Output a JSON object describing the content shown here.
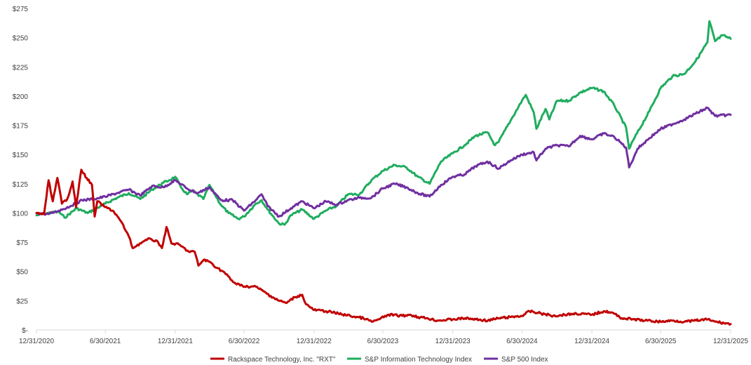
{
  "chart_data": {
    "type": "line",
    "title": "",
    "xlabel": "",
    "ylabel": "",
    "ylim": [
      0,
      275
    ],
    "xlim": [
      "12/31/2020",
      "12/31/2025"
    ],
    "grid": false,
    "legend_position": "bottom",
    "x_ticks": [
      "12/31/2020",
      "6/30/2021",
      "12/31/2021",
      "6/30/2022",
      "12/31/2022",
      "6/30/2023",
      "12/31/2023",
      "6/30/2024",
      "12/31/2024",
      "6/30/2025",
      "12/31/2025"
    ],
    "y_ticks": [
      {
        "value": 0,
        "label": "$-"
      },
      {
        "value": 25,
        "label": "$25"
      },
      {
        "value": 50,
        "label": "$50"
      },
      {
        "value": 75,
        "label": "$75"
      },
      {
        "value": 100,
        "label": "$100"
      },
      {
        "value": 125,
        "label": "$125"
      },
      {
        "value": 150,
        "label": "$150"
      },
      {
        "value": 175,
        "label": "$175"
      },
      {
        "value": 200,
        "label": "$200"
      },
      {
        "value": 225,
        "label": "$225"
      },
      {
        "value": 250,
        "label": "$250"
      },
      {
        "value": 275,
        "label": "$275"
      }
    ],
    "series": [
      {
        "name": "Rackspace Technology, Inc. \"RXT\"",
        "color": "#c00000",
        "points": [
          [
            "12/31/2020",
            100
          ],
          [
            "1/20/2021",
            99
          ],
          [
            "2/1/2021",
            128
          ],
          [
            "2/12/2021",
            110
          ],
          [
            "2/24/2021",
            130
          ],
          [
            "3/8/2021",
            108
          ],
          [
            "3/22/2021",
            112
          ],
          [
            "4/5/2021",
            127
          ],
          [
            "4/14/2021",
            105
          ],
          [
            "4/28/2021",
            137
          ],
          [
            "5/12/2021",
            130
          ],
          [
            "5/26/2021",
            124
          ],
          [
            "6/2/2021",
            97
          ],
          [
            "6/9/2021",
            110
          ],
          [
            "6/30/2021",
            105
          ],
          [
            "7/20/2021",
            102
          ],
          [
            "8/10/2021",
            93
          ],
          [
            "8/31/2021",
            80
          ],
          [
            "9/10/2021",
            70
          ],
          [
            "10/5/2021",
            75
          ],
          [
            "10/26/2021",
            78
          ],
          [
            "11/16/2021",
            75
          ],
          [
            "11/26/2021",
            70
          ],
          [
            "12/8/2021",
            88
          ],
          [
            "12/21/2021",
            74
          ],
          [
            "1/10/2022",
            73
          ],
          [
            "2/4/2022",
            67
          ],
          [
            "2/20/2022",
            67
          ],
          [
            "3/2/2022",
            55
          ],
          [
            "3/16/2022",
            60
          ],
          [
            "4/2/2022",
            58
          ],
          [
            "4/20/2022",
            53
          ],
          [
            "5/10/2022",
            49
          ],
          [
            "6/1/2022",
            41
          ],
          [
            "6/20/2022",
            38
          ],
          [
            "7/10/2022",
            37
          ],
          [
            "7/31/2022",
            37
          ],
          [
            "8/20/2022",
            33
          ],
          [
            "9/8/2022",
            29
          ],
          [
            "9/30/2022",
            25
          ],
          [
            "10/20/2022",
            23
          ],
          [
            "11/10/2022",
            28
          ],
          [
            "11/30/2022",
            30
          ],
          [
            "12/10/2022",
            22
          ],
          [
            "12/31/2022",
            17
          ],
          [
            "2/1/2023",
            16
          ],
          [
            "3/5/2023",
            14
          ],
          [
            "4/5/2023",
            12
          ],
          [
            "5/10/2023",
            10
          ],
          [
            "6/1/2023",
            7
          ],
          [
            "6/20/2023",
            9
          ],
          [
            "7/15/2023",
            13
          ],
          [
            "8/20/2023",
            12
          ],
          [
            "9/10/2023",
            13
          ],
          [
            "10/1/2023",
            11
          ],
          [
            "10/25/2023",
            10
          ],
          [
            "11/20/2023",
            8
          ],
          [
            "12/31/2023",
            9
          ],
          [
            "2/1/2024",
            10
          ],
          [
            "3/1/2024",
            9
          ],
          [
            "4/1/2024",
            8
          ],
          [
            "5/1/2024",
            10
          ],
          [
            "6/1/2024",
            11
          ],
          [
            "6/30/2024",
            12
          ],
          [
            "7/20/2024",
            16
          ],
          [
            "8/20/2024",
            14
          ],
          [
            "9/20/2024",
            12
          ],
          [
            "10/20/2024",
            13
          ],
          [
            "11/20/2024",
            14
          ],
          [
            "12/31/2024",
            13
          ],
          [
            "1/31/2025",
            16
          ],
          [
            "2/20/2025",
            15
          ],
          [
            "3/20/2025",
            10
          ],
          [
            "4/20/2025",
            9
          ],
          [
            "5/20/2025",
            8
          ],
          [
            "6/30/2025",
            7
          ],
          [
            "8/1/2025",
            8
          ],
          [
            "9/1/2025",
            7
          ],
          [
            "10/1/2025",
            8
          ],
          [
            "11/1/2025",
            9
          ],
          [
            "11/20/2025",
            7
          ],
          [
            "12/31/2025",
            5
          ]
        ]
      },
      {
        "name": "S&P Information Technology Index",
        "color": "#1fad5f",
        "points": [
          [
            "12/31/2020",
            98
          ],
          [
            "1/31/2021",
            100
          ],
          [
            "2/28/2021",
            101
          ],
          [
            "3/15/2021",
            96
          ],
          [
            "4/15/2021",
            104
          ],
          [
            "5/15/2021",
            100
          ],
          [
            "6/30/2021",
            108
          ],
          [
            "7/31/2021",
            113
          ],
          [
            "8/31/2021",
            117
          ],
          [
            "9/30/2021",
            112
          ],
          [
            "10/31/2021",
            120
          ],
          [
            "11/30/2021",
            126
          ],
          [
            "12/15/2021",
            128
          ],
          [
            "12/31/2021",
            131
          ],
          [
            "1/15/2022",
            122
          ],
          [
            "1/31/2022",
            116
          ],
          [
            "2/15/2022",
            119
          ],
          [
            "3/15/2022",
            112
          ],
          [
            "3/31/2022",
            124
          ],
          [
            "4/30/2022",
            107
          ],
          [
            "5/20/2022",
            100
          ],
          [
            "6/15/2022",
            95
          ],
          [
            "6/30/2022",
            97
          ],
          [
            "7/31/2022",
            108
          ],
          [
            "8/15/2022",
            111
          ],
          [
            "8/31/2022",
            103
          ],
          [
            "9/30/2022",
            91
          ],
          [
            "10/15/2022",
            90
          ],
          [
            "10/31/2022",
            98
          ],
          [
            "11/30/2022",
            103
          ],
          [
            "12/31/2022",
            95
          ],
          [
            "1/31/2023",
            102
          ],
          [
            "2/28/2023",
            106
          ],
          [
            "3/31/2023",
            116
          ],
          [
            "4/30/2023",
            116
          ],
          [
            "5/31/2023",
            128
          ],
          [
            "6/30/2023",
            136
          ],
          [
            "7/31/2023",
            141
          ],
          [
            "8/31/2023",
            139
          ],
          [
            "9/30/2023",
            131
          ],
          [
            "10/31/2023",
            125
          ],
          [
            "11/30/2023",
            144
          ],
          [
            "12/31/2023",
            151
          ],
          [
            "1/31/2024",
            158
          ],
          [
            "2/29/2024",
            166
          ],
          [
            "3/31/2024",
            169
          ],
          [
            "4/20/2024",
            158
          ],
          [
            "4/30/2024",
            161
          ],
          [
            "5/31/2024",
            179
          ],
          [
            "6/30/2024",
            196
          ],
          [
            "7/10/2024",
            201
          ],
          [
            "7/31/2024",
            186
          ],
          [
            "8/7/2024",
            172
          ],
          [
            "8/31/2024",
            189
          ],
          [
            "9/10/2024",
            180
          ],
          [
            "9/30/2024",
            196
          ],
          [
            "10/31/2024",
            196
          ],
          [
            "11/30/2024",
            203
          ],
          [
            "12/31/2024",
            207
          ],
          [
            "1/31/2025",
            204
          ],
          [
            "2/28/2025",
            192
          ],
          [
            "3/31/2025",
            173
          ],
          [
            "4/8/2025",
            155
          ],
          [
            "4/20/2025",
            163
          ],
          [
            "5/31/2025",
            187
          ],
          [
            "6/30/2025",
            207
          ],
          [
            "7/31/2025",
            217
          ],
          [
            "8/31/2025",
            219
          ],
          [
            "9/30/2025",
            230
          ],
          [
            "10/31/2025",
            246
          ],
          [
            "11/5/2025",
            264
          ],
          [
            "11/20/2025",
            247
          ],
          [
            "12/10/2025",
            252
          ],
          [
            "12/31/2025",
            249
          ]
        ]
      },
      {
        "name": "S&P 500 Index",
        "color": "#7030a0",
        "points": [
          [
            "12/31/2020",
            100
          ],
          [
            "1/31/2021",
            99
          ],
          [
            "2/28/2021",
            102
          ],
          [
            "3/31/2021",
            106
          ],
          [
            "4/30/2021",
            111
          ],
          [
            "5/31/2021",
            112
          ],
          [
            "6/30/2021",
            114
          ],
          [
            "7/31/2021",
            117
          ],
          [
            "8/31/2021",
            120
          ],
          [
            "9/30/2021",
            115
          ],
          [
            "10/31/2021",
            123
          ],
          [
            "11/30/2021",
            122
          ],
          [
            "12/31/2021",
            128
          ],
          [
            "1/31/2022",
            121
          ],
          [
            "2/28/2022",
            117
          ],
          [
            "3/31/2022",
            122
          ],
          [
            "4/30/2022",
            111
          ],
          [
            "5/31/2022",
            111
          ],
          [
            "6/30/2022",
            102
          ],
          [
            "7/31/2022",
            111
          ],
          [
            "8/15/2022",
            116
          ],
          [
            "8/31/2022",
            106
          ],
          [
            "9/30/2022",
            97
          ],
          [
            "10/31/2022",
            104
          ],
          [
            "11/30/2022",
            110
          ],
          [
            "12/31/2022",
            104
          ],
          [
            "1/31/2023",
            110
          ],
          [
            "2/28/2023",
            107
          ],
          [
            "3/31/2023",
            111
          ],
          [
            "4/30/2023",
            113
          ],
          [
            "5/31/2023",
            113
          ],
          [
            "6/30/2023",
            121
          ],
          [
            "7/31/2023",
            125
          ],
          [
            "8/31/2023",
            122
          ],
          [
            "9/30/2023",
            117
          ],
          [
            "10/31/2023",
            114
          ],
          [
            "11/30/2023",
            124
          ],
          [
            "12/31/2023",
            131
          ],
          [
            "1/31/2024",
            133
          ],
          [
            "2/29/2024",
            140
          ],
          [
            "3/31/2024",
            144
          ],
          [
            "4/30/2024",
            138
          ],
          [
            "5/31/2024",
            145
          ],
          [
            "6/30/2024",
            150
          ],
          [
            "7/31/2024",
            152
          ],
          [
            "8/7/2024",
            145
          ],
          [
            "8/31/2024",
            155
          ],
          [
            "9/30/2024",
            158
          ],
          [
            "10/31/2024",
            157
          ],
          [
            "11/30/2024",
            166
          ],
          [
            "12/31/2024",
            163
          ],
          [
            "1/31/2025",
            168
          ],
          [
            "2/28/2025",
            165
          ],
          [
            "3/31/2025",
            156
          ],
          [
            "4/8/2025",
            139
          ],
          [
            "4/30/2025",
            155
          ],
          [
            "5/31/2025",
            164
          ],
          [
            "6/30/2025",
            172
          ],
          [
            "7/31/2025",
            176
          ],
          [
            "8/31/2025",
            180
          ],
          [
            "9/30/2025",
            185
          ],
          [
            "10/31/2025",
            190
          ],
          [
            "11/20/2025",
            183
          ],
          [
            "12/31/2025",
            184
          ]
        ]
      }
    ]
  }
}
